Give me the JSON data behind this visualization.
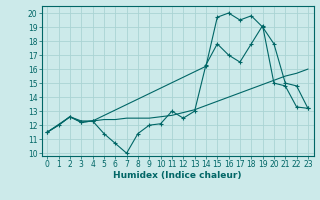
{
  "xlabel": "Humidex (Indice chaleur)",
  "bg_color": "#cceaea",
  "line_color": "#006666",
  "grid_color": "#aad4d4",
  "xlim": [
    -0.5,
    23.5
  ],
  "ylim": [
    9.8,
    20.5
  ],
  "xticks": [
    0,
    1,
    2,
    3,
    4,
    5,
    6,
    7,
    8,
    9,
    10,
    11,
    12,
    13,
    14,
    15,
    16,
    17,
    18,
    19,
    20,
    21,
    22,
    23
  ],
  "yticks": [
    10,
    11,
    12,
    13,
    14,
    15,
    16,
    17,
    18,
    19,
    20
  ],
  "line1_x": [
    0,
    1,
    2,
    3,
    4,
    5,
    6,
    7,
    8,
    9,
    10,
    11,
    12,
    13,
    14,
    15,
    16,
    17,
    18,
    19,
    20,
    21,
    22,
    23
  ],
  "line1_y": [
    11.5,
    12.0,
    12.6,
    12.2,
    12.3,
    11.4,
    10.7,
    10.0,
    11.4,
    12.0,
    12.1,
    13.0,
    12.5,
    13.0,
    16.3,
    17.8,
    17.0,
    16.5,
    17.8,
    19.1,
    15.0,
    14.8,
    13.3,
    13.2
  ],
  "line2_x": [
    0,
    2,
    3,
    4,
    14,
    15,
    16,
    17,
    18,
    19,
    20,
    21,
    22,
    23
  ],
  "line2_y": [
    11.5,
    12.6,
    12.2,
    12.3,
    16.2,
    19.7,
    20.0,
    19.5,
    19.8,
    19.0,
    17.8,
    15.0,
    14.8,
    13.2
  ],
  "line3_x": [
    0,
    1,
    2,
    3,
    4,
    5,
    6,
    7,
    8,
    9,
    10,
    11,
    12,
    13,
    14,
    15,
    16,
    17,
    18,
    19,
    20,
    21,
    22,
    23
  ],
  "line3_y": [
    11.5,
    12.0,
    12.6,
    12.3,
    12.3,
    12.4,
    12.4,
    12.5,
    12.5,
    12.5,
    12.6,
    12.7,
    12.9,
    13.1,
    13.4,
    13.7,
    14.0,
    14.3,
    14.6,
    14.9,
    15.2,
    15.5,
    15.7,
    16.0
  ]
}
